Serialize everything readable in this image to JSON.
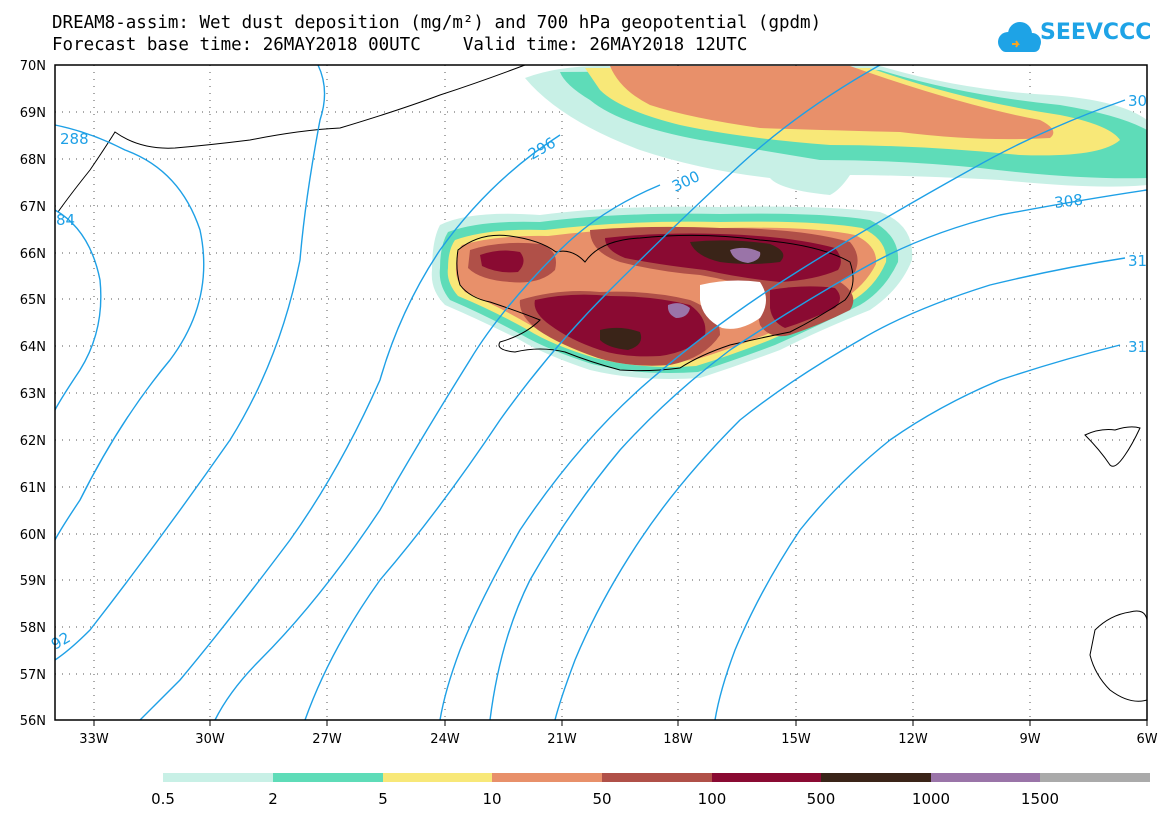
{
  "header": {
    "title_line1": "DREAM8-assim: Wet dust deposition (mg/m²) and 700 hPa geopotential (gpdm)",
    "title_line2": "Forecast base time: 26MAY2018 00UTC    Valid time: 26MAY2018 12UTC"
  },
  "logo": {
    "text": "SEEVCCC",
    "icon": "cloud-icon",
    "color": "#1ea3e6"
  },
  "map": {
    "lat_labels": [
      "70N",
      "69N",
      "68N",
      "67N",
      "66N",
      "65N",
      "64N",
      "63N",
      "62N",
      "61N",
      "60N",
      "59N",
      "58N",
      "57N",
      "56N"
    ],
    "lon_labels": [
      "33W",
      "30W",
      "27W",
      "24W",
      "21W",
      "18W",
      "15W",
      "12W",
      "9W",
      "6W"
    ],
    "contour_labels": [
      "288",
      "296",
      "300",
      "308",
      "30",
      "31",
      "31",
      "84",
      "92"
    ],
    "contour_color": "#1ea0e6"
  },
  "legend": {
    "colors": [
      "#c8f0e6",
      "#5edcb8",
      "#f8e878",
      "#e8906a",
      "#b05048",
      "#8a0a32",
      "#3a2418",
      "#9a74a8",
      "#aaaaaa"
    ],
    "labels": [
      "0.5",
      "2",
      "5",
      "10",
      "50",
      "100",
      "500",
      "1000",
      "1500"
    ]
  }
}
